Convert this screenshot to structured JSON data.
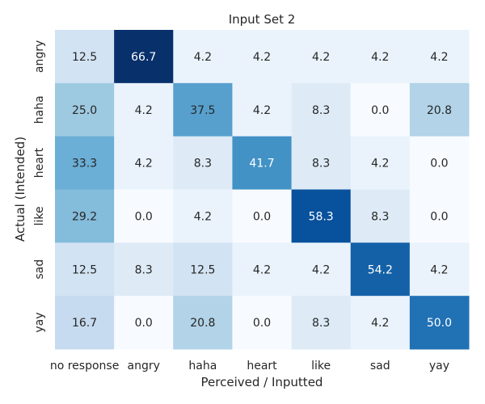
{
  "chart_data": {
    "type": "heatmap",
    "title": "Input Set 2",
    "xlabel": "Perceived / Inputted",
    "ylabel": "Actual (Intended)",
    "x_categories": [
      "no response",
      "angry",
      "haha",
      "heart",
      "like",
      "sad",
      "yay"
    ],
    "y_categories": [
      "angry",
      "haha",
      "heart",
      "like",
      "sad",
      "yay"
    ],
    "values": [
      [
        12.5,
        66.7,
        4.2,
        4.2,
        4.2,
        4.2,
        4.2
      ],
      [
        25.0,
        4.2,
        37.5,
        4.2,
        8.3,
        0.0,
        20.8
      ],
      [
        33.3,
        4.2,
        8.3,
        41.7,
        8.3,
        4.2,
        0.0
      ],
      [
        29.2,
        0.0,
        4.2,
        0.0,
        58.3,
        8.3,
        0.0
      ],
      [
        12.5,
        8.3,
        12.5,
        4.2,
        4.2,
        54.2,
        4.2
      ],
      [
        16.7,
        0.0,
        20.8,
        0.0,
        8.3,
        4.2,
        50.0
      ]
    ],
    "value_labels": [
      [
        "12.5",
        "66.7",
        "4.2",
        "4.2",
        "4.2",
        "4.2",
        "4.2"
      ],
      [
        "25.0",
        "4.2",
        "37.5",
        "4.2",
        "8.3",
        "0.0",
        "20.8"
      ],
      [
        "33.3",
        "4.2",
        "8.3",
        "41.7",
        "8.3",
        "4.2",
        "0.0"
      ],
      [
        "29.2",
        "0.0",
        "4.2",
        "0.0",
        "58.3",
        "8.3",
        "0.0"
      ],
      [
        "12.5",
        "8.3",
        "12.5",
        "4.2",
        "4.2",
        "54.2",
        "4.2"
      ],
      [
        "16.7",
        "0.0",
        "20.8",
        "0.0",
        "8.3",
        "4.2",
        "50.0"
      ]
    ],
    "colormap": "Blues",
    "vmin": 0,
    "vmax": 66.7,
    "color_low": "#f7fbff",
    "color_high": "#08306b",
    "text_dark": "#262626",
    "text_light": "#ffffff",
    "colorbar": false,
    "grid": false
  }
}
